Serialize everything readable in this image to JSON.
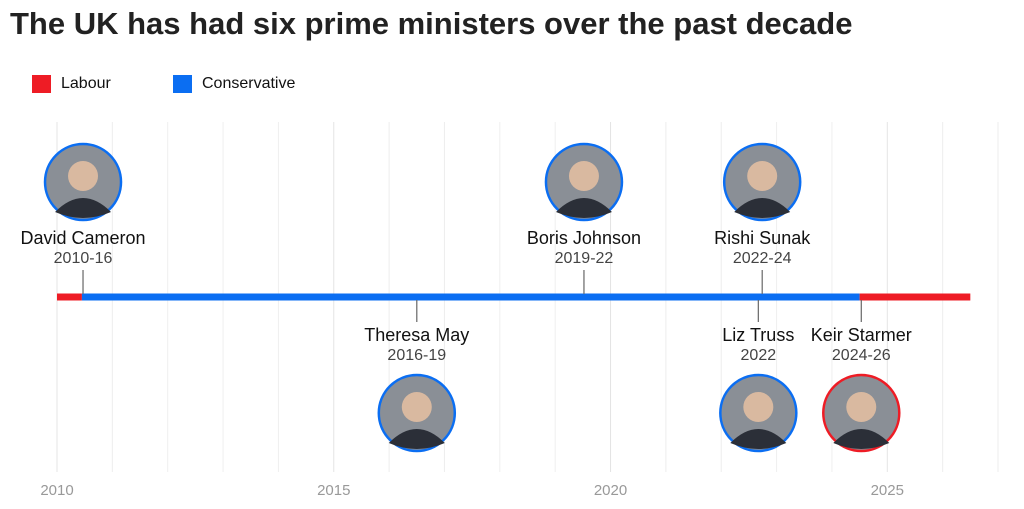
{
  "chart_data": {
    "type": "timeline",
    "title": "The UK has had six prime ministers over the past decade",
    "parties": [
      {
        "name": "Labour",
        "color": "#ee1c25"
      },
      {
        "name": "Conservative",
        "color": "#0b6ef2"
      }
    ],
    "segments": [
      {
        "party": "Labour",
        "start": 2010,
        "end": 2010.45
      },
      {
        "party": "Conservative",
        "start": 2010.45,
        "end": 2024.5
      },
      {
        "party": "Labour",
        "start": 2024.5,
        "end": 2026.5
      }
    ],
    "prime_ministers": [
      {
        "name": "David Cameron",
        "years": "2010-16",
        "party": "Conservative",
        "x": 2010.47,
        "side": "above"
      },
      {
        "name": "Theresa May",
        "years": "2016-19",
        "party": "Conservative",
        "x": 2016.5,
        "side": "below"
      },
      {
        "name": "Boris Johnson",
        "years": "2019-22",
        "party": "Conservative",
        "x": 2019.52,
        "side": "above"
      },
      {
        "name": "Liz Truss",
        "years": "2022",
        "party": "Conservative",
        "x": 2022.67,
        "side": "below"
      },
      {
        "name": "Rishi Sunak",
        "years": "2022-24",
        "party": "Conservative",
        "x": 2022.74,
        "side": "above"
      },
      {
        "name": "Keir Starmer",
        "years": "2024-26",
        "party": "Labour",
        "x": 2024.53,
        "side": "below"
      }
    ],
    "xlim": [
      2010,
      2027
    ],
    "xticks": [
      2010,
      2015,
      2020,
      2025
    ],
    "xminorticks": [
      2011,
      2012,
      2013,
      2014,
      2016,
      2017,
      2018,
      2019,
      2021,
      2022,
      2023,
      2024,
      2026,
      2027
    ],
    "grid": true
  }
}
